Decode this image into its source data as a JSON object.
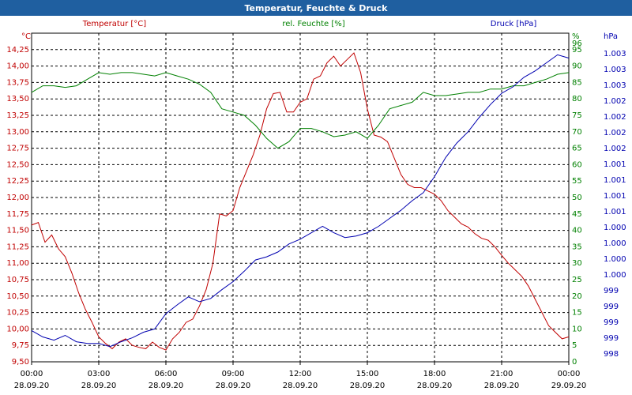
{
  "window": {
    "title": "Temperatur, Feuchte & Druck",
    "titlebar_color": "#1f5fa0"
  },
  "colors": {
    "temperature": "#c00000",
    "humidity": "#008000",
    "pressure": "#0000b0",
    "grid": "#000000",
    "axis_text": "#000000"
  },
  "chart_data": {
    "type": "line",
    "title": "Temperatur, Feuchte & Druck",
    "xlabel": "",
    "x_ticks": [
      {
        "time": "00:00",
        "date": "28.09.20"
      },
      {
        "time": "03:00",
        "date": "28.09.20"
      },
      {
        "time": "06:00",
        "date": "28.09.20"
      },
      {
        "time": "09:00",
        "date": "28.09.20"
      },
      {
        "time": "12:00",
        "date": "28.09.20"
      },
      {
        "time": "15:00",
        "date": "28.09.20"
      },
      {
        "time": "18:00",
        "date": "28.09.20"
      },
      {
        "time": "21:00",
        "date": "28.09.20"
      },
      {
        "time": "00:00",
        "date": "29.09.20"
      }
    ],
    "x_range_hours": [
      0,
      24
    ],
    "grid": true,
    "axes": {
      "temperature": {
        "label": "Temperatur [°C]",
        "unit": "°C",
        "range": [
          9.5,
          14.5
        ],
        "side": "left",
        "ticks": [
          "14,25",
          "14,00",
          "13,75",
          "13,50",
          "13,25",
          "13,00",
          "12,75",
          "12,50",
          "12,25",
          "12,00",
          "11,75",
          "11,50",
          "11,25",
          "11,00",
          "10,75",
          "10,50",
          "10,25",
          "10,00",
          "9,75",
          "9,50"
        ]
      },
      "humidity": {
        "label": "rel. Feuchte [%]",
        "unit": "%",
        "range": [
          0,
          100
        ],
        "side": "right",
        "ticks": [
          "96",
          "95",
          "90",
          "85",
          "80",
          "75",
          "70",
          "65",
          "60",
          "55",
          "50",
          "45",
          "40",
          "35",
          "30",
          "25",
          "20",
          "15",
          "10",
          "5",
          "0"
        ]
      },
      "pressure": {
        "label": "Druck [hPa]",
        "unit": "hPa",
        "side": "right",
        "ticks": [
          "1.003",
          "1.003",
          "1.003",
          "1.002",
          "1.002",
          "1.002",
          "1.002",
          "1.001",
          "1.001",
          "1.001",
          "1.001",
          "1.000",
          "1.000",
          "1.000",
          "1.000",
          "999",
          "999",
          "999",
          "999",
          "998"
        ]
      }
    },
    "series": [
      {
        "name": "Temperatur [°C]",
        "axis": "temperature",
        "x": [
          0,
          0.3,
          0.6,
          0.9,
          1.2,
          1.5,
          1.8,
          2.1,
          2.4,
          2.7,
          3.0,
          3.3,
          3.6,
          3.9,
          4.2,
          4.5,
          4.8,
          5.1,
          5.4,
          5.7,
          6.0,
          6.3,
          6.6,
          6.9,
          7.2,
          7.5,
          7.8,
          8.1,
          8.4,
          8.7,
          9.0,
          9.3,
          9.6,
          9.9,
          10.2,
          10.5,
          10.8,
          11.1,
          11.4,
          11.7,
          12.0,
          12.3,
          12.6,
          12.9,
          13.2,
          13.5,
          13.8,
          14.1,
          14.4,
          14.7,
          15.0,
          15.3,
          15.6,
          15.9,
          16.2,
          16.5,
          16.8,
          17.1,
          17.4,
          17.7,
          18.0,
          18.3,
          18.6,
          18.9,
          19.2,
          19.5,
          19.8,
          20.1,
          20.4,
          20.7,
          21.0,
          21.3,
          21.6,
          21.9,
          22.2,
          22.5,
          22.8,
          23.1,
          23.4,
          23.7,
          24.0
        ],
        "values": [
          11.58,
          11.62,
          11.32,
          11.43,
          11.22,
          11.1,
          10.85,
          10.55,
          10.3,
          10.1,
          9.88,
          9.78,
          9.7,
          9.8,
          9.85,
          9.75,
          9.72,
          9.7,
          9.8,
          9.72,
          9.68,
          9.85,
          9.95,
          10.1,
          10.15,
          10.35,
          10.6,
          11.0,
          11.75,
          11.72,
          11.8,
          12.15,
          12.4,
          12.65,
          12.95,
          13.35,
          13.58,
          13.6,
          13.3,
          13.3,
          13.45,
          13.5,
          13.8,
          13.85,
          14.05,
          14.15,
          14.0,
          14.1,
          14.2,
          13.9,
          13.35,
          12.95,
          12.92,
          12.85,
          12.6,
          12.35,
          12.2,
          12.15,
          12.15,
          12.1,
          12.05,
          11.95,
          11.8,
          11.7,
          11.6,
          11.55,
          11.45,
          11.38,
          11.35,
          11.25,
          11.12,
          11.0,
          10.9,
          10.8,
          10.65,
          10.45,
          10.25,
          10.05,
          9.95,
          9.85,
          9.88
        ]
      },
      {
        "name": "rel. Feuchte [%]",
        "axis": "humidity",
        "x": [
          0,
          0.5,
          1,
          1.5,
          2,
          2.5,
          3,
          3.5,
          4,
          4.5,
          5,
          5.5,
          6,
          6.5,
          7,
          7.5,
          8,
          8.5,
          9,
          9.5,
          10,
          10.5,
          11,
          11.5,
          12,
          12.5,
          13,
          13.5,
          14,
          14.5,
          15,
          15.5,
          16,
          16.5,
          17,
          17.5,
          18,
          18.5,
          19,
          19.5,
          20,
          20.5,
          21,
          21.5,
          22,
          22.5,
          23,
          23.5,
          24
        ],
        "values": [
          82,
          84,
          84,
          83.5,
          84,
          86,
          88,
          87.5,
          88,
          88,
          87.5,
          87,
          88,
          87,
          86,
          84.5,
          82,
          77,
          76,
          75,
          72,
          68,
          65,
          67,
          71,
          71,
          70,
          68.5,
          69,
          70,
          68,
          72,
          77,
          78,
          79,
          82,
          81,
          81,
          81.5,
          82,
          82,
          83,
          83,
          84,
          84,
          85,
          86,
          87.5,
          88
        ]
      },
      {
        "name": "Druck [hPa]",
        "axis": "pressure",
        "x": [
          0,
          0.5,
          1,
          1.5,
          2,
          2.5,
          3,
          3.5,
          4,
          4.5,
          5,
          5.5,
          6,
          6.5,
          7,
          7.5,
          8,
          8.5,
          9,
          9.5,
          10,
          10.5,
          11,
          11.5,
          12,
          12.5,
          13,
          13.5,
          14,
          14.5,
          15,
          15.5,
          16,
          16.5,
          17,
          17.5,
          18,
          18.5,
          19,
          19.5,
          20,
          20.5,
          21,
          21.5,
          22,
          22.5,
          23,
          23.5,
          24
        ],
        "values": [
          998.64,
          998.56,
          998.52,
          998.58,
          998.5,
          998.48,
          998.48,
          998.44,
          998.5,
          998.55,
          998.62,
          998.66,
          998.85,
          998.96,
          999.06,
          999.0,
          999.04,
          999.15,
          999.25,
          999.38,
          999.52,
          999.56,
          999.62,
          999.72,
          999.78,
          999.86,
          999.94,
          999.86,
          999.8,
          999.82,
          999.86,
          999.94,
          1000.04,
          1000.14,
          1000.26,
          1000.36,
          1000.56,
          1000.8,
          1000.98,
          1001.12,
          1001.3,
          1001.46,
          1001.6,
          1001.68,
          1001.8,
          1001.88,
          1001.98,
          1002.08,
          1002.04
        ]
      }
    ]
  }
}
